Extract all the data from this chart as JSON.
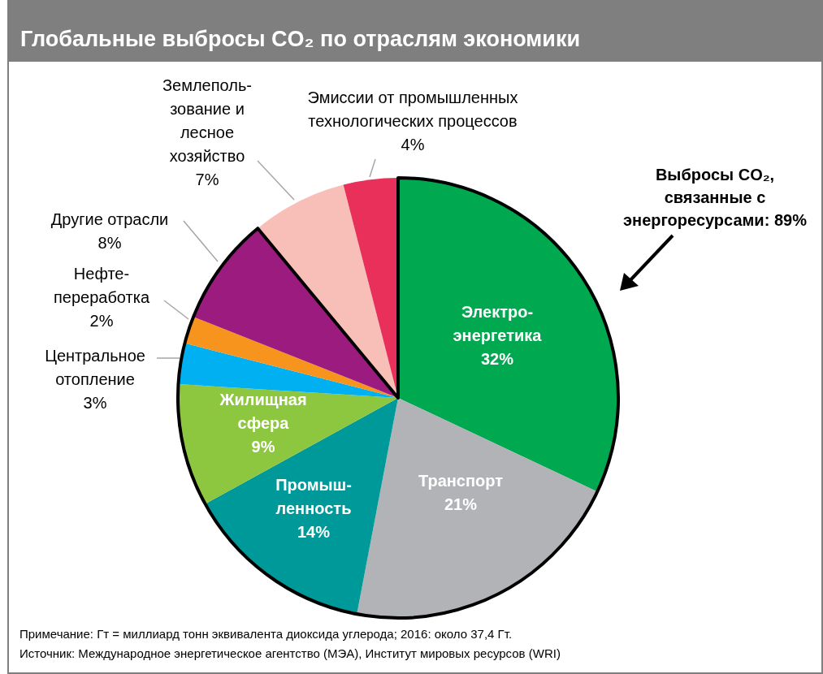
{
  "chart_data": {
    "type": "pie",
    "title": "Глобальные выбросы CO₂ по отраслям экономики",
    "categories": [
      "Электро-\nэнергетика",
      "Транспорт",
      "Промыш-\nленность",
      "Жилищная\nсфера",
      "Центральное\nотопление",
      "Нефте-\nпереработка",
      "Другие отрасли",
      "Землеполь-\nзование и\nлесное\nхозяйство",
      "Эмиссии от промышленных\nтехнологических процессов"
    ],
    "values": [
      32,
      21,
      14,
      9,
      3,
      2,
      8,
      7,
      4
    ],
    "value_labels": [
      "32%",
      "21%",
      "14%",
      "9%",
      "3%",
      "2%",
      "8%",
      "7%",
      "4%"
    ],
    "colors": [
      "#00a94f",
      "#b1b3b6",
      "#009999",
      "#8dc63f",
      "#00b0f0",
      "#f7941d",
      "#9b1b7e",
      "#f8bfb8",
      "#e8305a"
    ],
    "annotations": [
      "Выбросы CO₂,\nсвязанные с\nэнергоресурсами: 89%",
      "Примечание: Гт = миллиард тонн эквивалента диоксида углерода; 2016: около 37,4 Гт.",
      "Источник: Международное энергетическое агентство (МЭА), Институт мировых ресурсов (WRI)"
    ]
  }
}
